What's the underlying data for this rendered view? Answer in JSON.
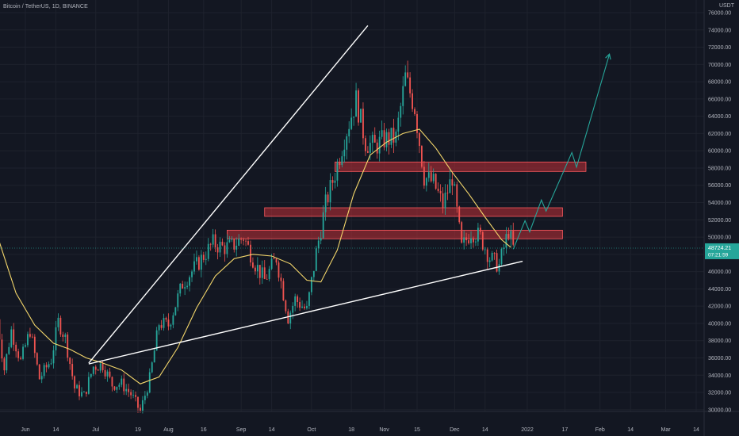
{
  "header": {
    "symbol_line": "Bitcoin / TetherUS, 1D, BINANCE",
    "currency": "USDT"
  },
  "chart_data": {
    "type": "candlestick",
    "title": "Bitcoin / TetherUS, 1D, BINANCE",
    "y_unit": "USDT",
    "ylim": [
      30000,
      77000
    ],
    "y_ticks": [
      "30000.00",
      "32000.00",
      "34000.00",
      "36000.00",
      "38000.00",
      "40000.00",
      "42000.00",
      "44000.00",
      "46000.00",
      "48000.00",
      "50000.00",
      "52000.00",
      "54000.00",
      "56000.00",
      "58000.00",
      "60000.00",
      "62000.00",
      "64000.00",
      "66000.00",
      "68000.00",
      "70000.00",
      "72000.00",
      "74000.00",
      "76000.00"
    ],
    "x_ticks": [
      "Jun",
      "14",
      "Jul",
      "19",
      "Aug",
      "16",
      "Sep",
      "14",
      "Oct",
      "18",
      "Nov",
      "15",
      "Dec",
      "14",
      "2022",
      "17",
      "Feb",
      "14",
      "Mar",
      "14"
    ],
    "x_tick_dates": [
      "2021-06-01",
      "2021-06-14",
      "2021-07-01",
      "2021-07-19",
      "2021-08-01",
      "2021-08-16",
      "2021-09-01",
      "2021-09-14",
      "2021-10-01",
      "2021-10-18",
      "2021-11-01",
      "2021-11-15",
      "2021-12-01",
      "2021-12-14",
      "2022-01-01",
      "2022-01-17",
      "2022-02-01",
      "2022-02-14",
      "2022-03-01",
      "2022-03-14"
    ],
    "last_price": "48724.21",
    "countdown": "07:21:59",
    "price_series": [
      [
        "2021-05-20",
        40500
      ],
      [
        "2021-05-23",
        34700
      ],
      [
        "2021-05-26",
        39200
      ],
      [
        "2021-05-30",
        35600
      ],
      [
        "2021-06-03",
        39200
      ],
      [
        "2021-06-07",
        33600
      ],
      [
        "2021-06-12",
        35800
      ],
      [
        "2021-06-15",
        40200
      ],
      [
        "2021-06-18",
        38300
      ],
      [
        "2021-06-22",
        32500
      ],
      [
        "2021-06-26",
        31600
      ],
      [
        "2021-06-30",
        35000
      ],
      [
        "2021-07-04",
        35200
      ],
      [
        "2021-07-08",
        32900
      ],
      [
        "2021-07-12",
        33000
      ],
      [
        "2021-07-16",
        31800
      ],
      [
        "2021-07-20",
        29800
      ],
      [
        "2021-07-24",
        33600
      ],
      [
        "2021-07-28",
        40000
      ],
      [
        "2021-08-01",
        39800
      ],
      [
        "2021-08-07",
        44600
      ],
      [
        "2021-08-14",
        47100
      ],
      [
        "2021-08-20",
        49300
      ],
      [
        "2021-08-24",
        48800
      ],
      [
        "2021-08-28",
        48900
      ],
      [
        "2021-09-02",
        50000
      ],
      [
        "2021-09-07",
        46900
      ],
      [
        "2021-09-11",
        45000
      ],
      [
        "2021-09-16",
        47600
      ],
      [
        "2021-09-21",
        40700
      ],
      [
        "2021-09-24",
        42800
      ],
      [
        "2021-09-29",
        41500
      ],
      [
        "2021-10-03",
        48200
      ],
      [
        "2021-10-07",
        53800
      ],
      [
        "2021-10-11",
        57400
      ],
      [
        "2021-10-15",
        61500
      ],
      [
        "2021-10-20",
        65900
      ],
      [
        "2021-10-24",
        61000
      ],
      [
        "2021-10-28",
        60500
      ],
      [
        "2021-11-01",
        61300
      ],
      [
        "2021-11-06",
        61500
      ],
      [
        "2021-11-10",
        68500
      ],
      [
        "2021-11-14",
        65000
      ],
      [
        "2021-11-18",
        57000
      ],
      [
        "2021-11-22",
        56300
      ],
      [
        "2021-11-26",
        53700
      ],
      [
        "2021-11-30",
        57000
      ],
      [
        "2021-12-04",
        48700
      ],
      [
        "2021-12-08",
        50700
      ],
      [
        "2021-12-12",
        50000
      ],
      [
        "2021-12-16",
        47600
      ],
      [
        "2021-12-20",
        46700
      ],
      [
        "2021-12-24",
        50800
      ],
      [
        "2021-12-26",
        48724
      ]
    ],
    "ma_series": [
      [
        "2021-05-20",
        50200
      ],
      [
        "2021-05-28",
        43500
      ],
      [
        "2021-06-05",
        39800
      ],
      [
        "2021-06-13",
        37700
      ],
      [
        "2021-06-20",
        37000
      ],
      [
        "2021-06-27",
        36000
      ],
      [
        "2021-07-04",
        35400
      ],
      [
        "2021-07-12",
        34600
      ],
      [
        "2021-07-20",
        33000
      ],
      [
        "2021-07-28",
        33800
      ],
      [
        "2021-08-05",
        37200
      ],
      [
        "2021-08-13",
        41800
      ],
      [
        "2021-08-21",
        45500
      ],
      [
        "2021-08-29",
        47500
      ],
      [
        "2021-09-06",
        48000
      ],
      [
        "2021-09-14",
        47800
      ],
      [
        "2021-09-22",
        46900
      ],
      [
        "2021-09-29",
        45000
      ],
      [
        "2021-10-05",
        44800
      ],
      [
        "2021-10-12",
        48500
      ],
      [
        "2021-10-19",
        55000
      ],
      [
        "2021-10-26",
        59500
      ],
      [
        "2021-11-02",
        61000
      ],
      [
        "2021-11-09",
        62000
      ],
      [
        "2021-11-16",
        62500
      ],
      [
        "2021-11-23",
        60300
      ],
      [
        "2021-11-30",
        57500
      ],
      [
        "2021-12-07",
        55000
      ],
      [
        "2021-12-14",
        52300
      ],
      [
        "2021-12-21",
        49700
      ],
      [
        "2021-12-25",
        48800
      ]
    ],
    "trendlines": [
      {
        "from": [
          "2021-06-28",
          35400
        ],
        "to": [
          "2021-10-25",
          74500
        ],
        "color": "#ffffff"
      },
      {
        "from": [
          "2021-06-28",
          35300
        ],
        "to": [
          "2021-12-30",
          47200
        ],
        "color": "#ffffff"
      }
    ],
    "resistance_zones": [
      {
        "from": "2021-10-11",
        "to": "2022-01-26",
        "low": 57600,
        "high": 58700
      },
      {
        "from": "2021-09-11",
        "to": "2022-01-16",
        "low": 52400,
        "high": 53400
      },
      {
        "from": "2021-08-26",
        "to": "2022-01-16",
        "low": 49800,
        "high": 50800
      }
    ],
    "projection_path": [
      [
        "2021-12-26",
        48600
      ],
      [
        "2021-12-31",
        51900
      ],
      [
        "2022-01-02",
        50600
      ],
      [
        "2022-01-07",
        54300
      ],
      [
        "2022-01-09",
        53000
      ],
      [
        "2022-01-20",
        59800
      ],
      [
        "2022-01-22",
        58100
      ],
      [
        "2022-02-05",
        71200
      ]
    ],
    "grid": "on",
    "colors": {
      "background": "#131722",
      "up": "#26a69a",
      "down": "#ef5350",
      "ma": "#f3d66b",
      "trendline": "#ffffff",
      "zone_fill": "#c12f36",
      "zone_border": "#ff5a5f",
      "projection": "#26a69a",
      "axis_text": "#b2b5be",
      "price_label_bg": "#26a69a"
    }
  }
}
